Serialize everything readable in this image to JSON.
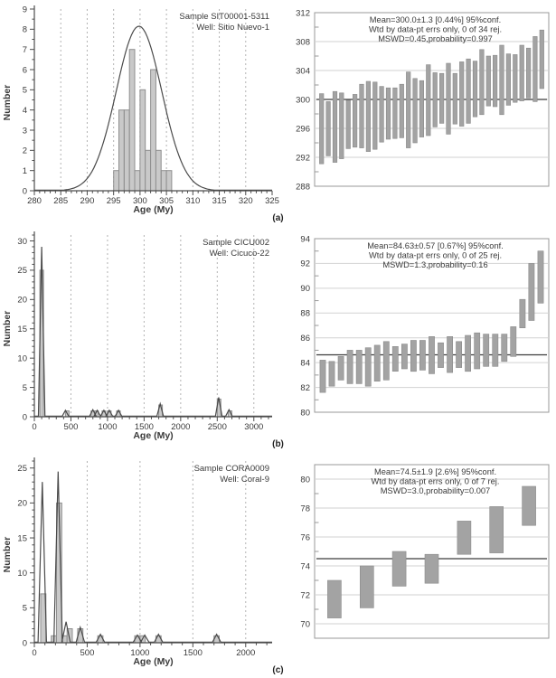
{
  "panels": [
    {
      "label": "(a)"
    },
    {
      "label": "(b)"
    },
    {
      "label": "(c)"
    }
  ],
  "colors": {
    "background": "#ffffff",
    "text": "#3a3a3a",
    "axis": "#4d4d4d",
    "frame": "#999999",
    "grid": "#d2d2d2",
    "grid_dashed": "#b3b3b3",
    "hist_fill": "#c9c9c9",
    "hist_edge": "#8f8f8f",
    "curve": "#4a4a4a",
    "err_fill": "#a3a3a3",
    "err_edge": "#8a8a8a",
    "mean": "#3c3c3c"
  },
  "chart_data": [
    {
      "type": "bar",
      "subtype": "histogram",
      "panel": "(a)",
      "title_lines": [
        "Sample SIT00001-5311",
        "Well: Sitio Nuevo-1"
      ],
      "xlabel": "Age (My)",
      "ylabel": "Number",
      "xlim": [
        280,
        325
      ],
      "ylim": [
        0,
        9
      ],
      "xtick_step": 5,
      "xminor_step": 1,
      "ytick_step": 1,
      "yminor_step": 0.5,
      "grid": "dashed-vertical",
      "bin_width": 1,
      "bins": [
        [
          295,
          1
        ],
        [
          296,
          4
        ],
        [
          297,
          4
        ],
        [
          298,
          7
        ],
        [
          299,
          1
        ],
        [
          300,
          5
        ],
        [
          301,
          2
        ],
        [
          302,
          6
        ],
        [
          303,
          2
        ],
        [
          304,
          1
        ],
        [
          305,
          1
        ]
      ],
      "curve": {
        "kind": "gaussian",
        "mean": 299.8,
        "sigma": 4.3,
        "peak": 8.15
      }
    },
    {
      "type": "bar",
      "subtype": "weighted-mean-error-bars",
      "panel": "(a)",
      "annotation_lines": [
        "Mean=300.0±1.3 [0.44%] 95%conf.",
        "Wtd by data-pt errs only, 0 of 34 rej.",
        "MSWD=0.45,probability=0.997"
      ],
      "ylim": [
        288,
        312
      ],
      "ytick_step": 4,
      "yminor_step": 2,
      "grid": "horizontal",
      "mean": 300.0,
      "bars": [
        [
          291.1,
          300.8
        ],
        [
          292.2,
          299.7
        ],
        [
          291.3,
          301.1
        ],
        [
          291.8,
          300.9
        ],
        [
          293.2,
          299.9
        ],
        [
          293.4,
          300.7
        ],
        [
          293.3,
          302.1
        ],
        [
          292.8,
          302.5
        ],
        [
          293.1,
          302.4
        ],
        [
          294.1,
          301.8
        ],
        [
          294.5,
          301.6
        ],
        [
          294.6,
          301.6
        ],
        [
          294.7,
          302.1
        ],
        [
          293.3,
          303.8
        ],
        [
          294.0,
          302.9
        ],
        [
          294.8,
          302.6
        ],
        [
          295.0,
          304.8
        ],
        [
          296.2,
          303.7
        ],
        [
          296.7,
          303.6
        ],
        [
          295.2,
          305.0
        ],
        [
          296.6,
          303.6
        ],
        [
          296.3,
          305.2
        ],
        [
          296.7,
          305.6
        ],
        [
          297.6,
          305.3
        ],
        [
          297.9,
          306.9
        ],
        [
          299.1,
          306.0
        ],
        [
          299.0,
          306.1
        ],
        [
          297.9,
          307.5
        ],
        [
          299.2,
          306.3
        ],
        [
          299.6,
          306.2
        ],
        [
          299.8,
          307.5
        ],
        [
          300.2,
          307.1
        ],
        [
          299.7,
          308.7
        ],
        [
          301.5,
          309.6
        ]
      ]
    },
    {
      "type": "bar",
      "subtype": "histogram",
      "panel": "(b)",
      "title_lines": [
        "Sample CICU002",
        "Well: Cicuco-22"
      ],
      "xlabel": "Age (My)",
      "ylabel": "Number",
      "xlim": [
        0,
        3250
      ],
      "ylim": [
        0,
        31
      ],
      "xtick_step": 500,
      "xminor_step": 100,
      "ytick_step": 5,
      "yminor_step": 1,
      "grid": "dashed-vertical",
      "bin_width": 50,
      "bins": [
        [
          75,
          25
        ],
        [
          425,
          1
        ],
        [
          775,
          1
        ],
        [
          825,
          1
        ],
        [
          925,
          1
        ],
        [
          1000,
          1
        ],
        [
          1125,
          1
        ],
        [
          1700,
          2
        ],
        [
          2500,
          3
        ],
        [
          2650,
          1
        ]
      ],
      "curve": {
        "kind": "spikes",
        "half_width": 45,
        "spikes": [
          [
            100,
            29
          ],
          [
            425,
            1.1
          ],
          [
            800,
            1.2
          ],
          [
            860,
            1.1
          ],
          [
            950,
            1.1
          ],
          [
            1025,
            1.1
          ],
          [
            1150,
            1.1
          ],
          [
            1720,
            2.2
          ],
          [
            2520,
            3.3
          ],
          [
            2660,
            1.2
          ]
        ]
      }
    },
    {
      "type": "bar",
      "subtype": "weighted-mean-error-bars",
      "panel": "(b)",
      "annotation_lines": [
        "Mean=84.63±0.57 [0.67%] 95%conf.",
        "Wtd by data-pt errs only, 0 of 25 rej.",
        "MSWD=1.3,probability=0.16"
      ],
      "ylim": [
        80,
        94
      ],
      "ytick_step": 2,
      "yminor_step": 1,
      "grid": "horizontal",
      "mean": 84.63,
      "bars": [
        [
          81.6,
          84.2
        ],
        [
          82.1,
          84.1
        ],
        [
          82.6,
          84.5
        ],
        [
          82.3,
          85.0
        ],
        [
          82.3,
          85.0
        ],
        [
          82.1,
          85.2
        ],
        [
          82.5,
          85.4
        ],
        [
          82.6,
          85.7
        ],
        [
          83.3,
          85.3
        ],
        [
          83.5,
          85.5
        ],
        [
          83.3,
          85.8
        ],
        [
          83.4,
          85.8
        ],
        [
          83.1,
          86.1
        ],
        [
          83.6,
          85.6
        ],
        [
          83.2,
          86.1
        ],
        [
          83.6,
          85.7
        ],
        [
          83.3,
          86.2
        ],
        [
          83.5,
          86.4
        ],
        [
          83.7,
          86.3
        ],
        [
          83.7,
          86.3
        ],
        [
          84.1,
          86.3
        ],
        [
          84.5,
          86.9
        ],
        [
          86.8,
          89.1
        ],
        [
          87.4,
          92.0
        ],
        [
          88.8,
          93.0
        ]
      ]
    },
    {
      "type": "bar",
      "subtype": "histogram",
      "panel": "(c)",
      "title_lines": [
        "Sample CORA0009",
        "Well: Coral-9"
      ],
      "xlabel": "Age (My)",
      "ylabel": "Number",
      "xlim": [
        0,
        2250
      ],
      "ylim": [
        0,
        26
      ],
      "xtick_step": 500,
      "xminor_step": 100,
      "ytick_step": 5,
      "yminor_step": 1,
      "grid": "dashed-vertical",
      "bin_width": 50,
      "bins": [
        [
          60,
          7
        ],
        [
          160,
          1
        ],
        [
          210,
          20
        ],
        [
          260,
          1
        ],
        [
          310,
          2
        ],
        [
          410,
          2
        ],
        [
          600,
          1
        ],
        [
          950,
          1
        ],
        [
          1000,
          1
        ],
        [
          1150,
          1
        ],
        [
          1700,
          1
        ]
      ],
      "curve": {
        "kind": "spikes",
        "half_width": 40,
        "spikes": [
          [
            75,
            23
          ],
          [
            225,
            24.5
          ],
          [
            300,
            3
          ],
          [
            435,
            2.2
          ],
          [
            625,
            1.2
          ],
          [
            975,
            1.1
          ],
          [
            1045,
            1.1
          ],
          [
            1175,
            1.2
          ],
          [
            1725,
            1.2
          ]
        ]
      }
    },
    {
      "type": "bar",
      "subtype": "weighted-mean-error-bars",
      "panel": "(c)",
      "annotation_lines": [
        "Mean=74.5±1.9 [2.6%] 95%conf.",
        "Wtd by data-pt errs only, 0 of 7 rej.",
        "MSWD=3.0,probability=0.007"
      ],
      "ylim": [
        69,
        81
      ],
      "ytick_step": 2,
      "yminor_step": 1,
      "grid": "horizontal",
      "mean": 74.5,
      "bars": [
        [
          70.4,
          73.0
        ],
        [
          71.1,
          74.0
        ],
        [
          72.6,
          75.0
        ],
        [
          72.8,
          74.8
        ],
        [
          74.8,
          77.1
        ],
        [
          74.9,
          78.1
        ],
        [
          76.8,
          79.5
        ]
      ]
    }
  ]
}
